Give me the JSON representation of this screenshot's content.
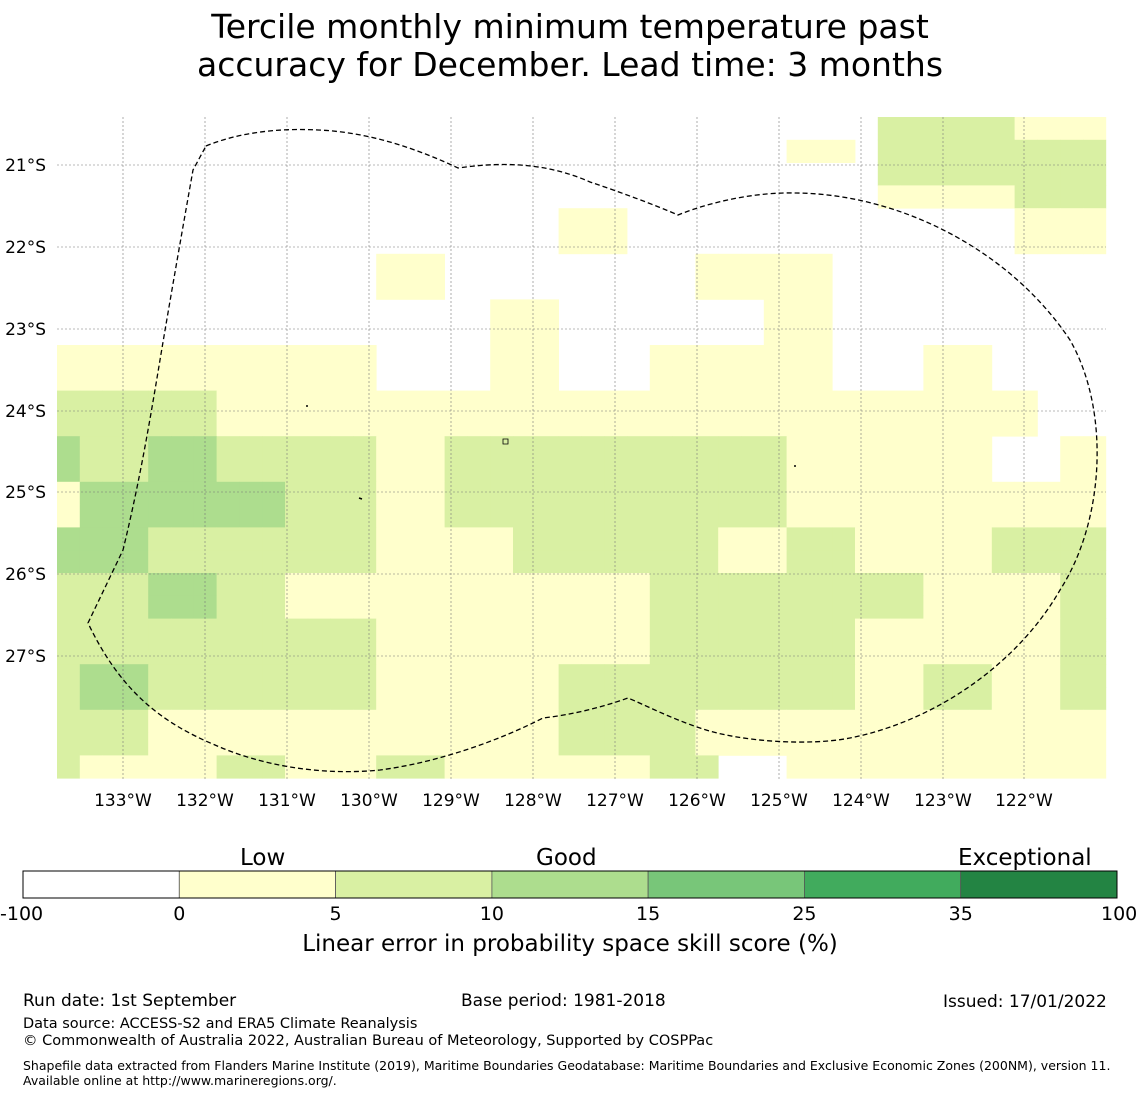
{
  "title_line1": "Tercile monthly minimum temperature past",
  "title_line2": "accuracy for December. Lead time: 3 months",
  "map": {
    "lon_labels": [
      "133°W",
      "132°W",
      "131°W",
      "130°W",
      "129°W",
      "128°W",
      "127°W",
      "126°W",
      "125°W",
      "124°W",
      "123°W",
      "122°W"
    ],
    "lat_labels": [
      "21°S",
      "22°S",
      "23°S",
      "24°S",
      "25°S",
      "26°S",
      "27°S"
    ],
    "grid": [
      [
        0,
        0,
        0,
        0,
        0,
        0,
        0,
        0,
        0,
        0,
        0,
        0,
        0,
        0,
        0,
        0,
        0,
        0,
        0,
        0,
        0,
        0,
        0,
        0,
        0,
        0,
        0,
        0,
        0,
        0,
        0,
        0,
        0,
        0,
        0,
        0,
        2,
        2,
        2,
        2,
        2,
        2,
        1,
        1,
        1,
        1
      ],
      [
        0,
        0,
        0,
        0,
        0,
        0,
        0,
        0,
        0,
        0,
        0,
        0,
        0,
        0,
        0,
        0,
        0,
        0,
        0,
        0,
        0,
        0,
        0,
        0,
        0,
        0,
        0,
        0,
        0,
        0,
        0,
        0,
        1,
        1,
        1,
        0,
        2,
        2,
        2,
        2,
        2,
        2,
        2,
        2,
        2,
        2
      ],
      [
        0,
        0,
        0,
        0,
        0,
        0,
        0,
        0,
        0,
        0,
        0,
        0,
        0,
        0,
        0,
        0,
        0,
        0,
        0,
        0,
        0,
        0,
        0,
        0,
        0,
        0,
        0,
        0,
        0,
        0,
        0,
        0,
        0,
        0,
        0,
        0,
        2,
        2,
        2,
        2,
        2,
        2,
        2,
        2,
        2,
        2
      ],
      [
        0,
        0,
        0,
        0,
        0,
        0,
        0,
        0,
        0,
        0,
        0,
        0,
        0,
        0,
        0,
        0,
        0,
        0,
        0,
        0,
        0,
        0,
        0,
        0,
        0,
        0,
        0,
        0,
        0,
        0,
        0,
        0,
        0,
        0,
        0,
        0,
        1,
        1,
        1,
        1,
        1,
        1,
        2,
        2,
        2,
        2
      ],
      [
        0,
        0,
        0,
        0,
        0,
        0,
        0,
        0,
        0,
        0,
        0,
        0,
        0,
        0,
        0,
        0,
        0,
        0,
        0,
        0,
        0,
        0,
        1,
        1,
        1,
        0,
        0,
        0,
        0,
        0,
        0,
        0,
        0,
        0,
        0,
        0,
        0,
        0,
        0,
        0,
        0,
        0,
        1,
        1,
        1,
        1
      ],
      [
        0,
        0,
        0,
        0,
        0,
        0,
        0,
        0,
        0,
        0,
        0,
        0,
        0,
        0,
        0,
        0,
        0,
        0,
        0,
        0,
        0,
        0,
        1,
        1,
        1,
        0,
        0,
        0,
        0,
        0,
        0,
        0,
        0,
        0,
        0,
        0,
        0,
        0,
        0,
        0,
        0,
        0,
        1,
        1,
        1,
        1
      ],
      [
        0,
        0,
        0,
        0,
        0,
        0,
        0,
        0,
        0,
        0,
        0,
        0,
        0,
        0,
        1,
        1,
        1,
        0,
        0,
        0,
        0,
        0,
        0,
        0,
        0,
        0,
        0,
        0,
        1,
        1,
        1,
        1,
        1,
        1,
        0,
        0,
        0,
        0,
        0,
        0,
        0,
        0,
        0,
        0,
        0,
        0
      ],
      [
        0,
        0,
        0,
        0,
        0,
        0,
        0,
        0,
        0,
        0,
        0,
        0,
        0,
        0,
        1,
        1,
        1,
        0,
        0,
        0,
        0,
        0,
        0,
        0,
        0,
        0,
        0,
        0,
        1,
        1,
        1,
        1,
        1,
        1,
        0,
        0,
        0,
        0,
        0,
        0,
        0,
        0,
        0,
        0,
        0,
        0
      ],
      [
        0,
        0,
        0,
        0,
        0,
        0,
        0,
        0,
        0,
        0,
        0,
        0,
        0,
        0,
        0,
        0,
        0,
        0,
        0,
        1,
        1,
        1,
        0,
        0,
        0,
        0,
        0,
        0,
        0,
        0,
        0,
        1,
        1,
        1,
        0,
        0,
        0,
        0,
        0,
        0,
        0,
        0,
        0,
        0,
        0,
        0
      ],
      [
        0,
        0,
        0,
        0,
        0,
        0,
        0,
        0,
        0,
        0,
        0,
        0,
        0,
        0,
        0,
        0,
        0,
        0,
        0,
        1,
        1,
        1,
        0,
        0,
        0,
        0,
        0,
        0,
        0,
        0,
        0,
        1,
        1,
        1,
        0,
        0,
        0,
        0,
        0,
        0,
        0,
        0,
        0,
        0,
        0,
        0
      ],
      [
        1,
        1,
        1,
        1,
        1,
        1,
        1,
        1,
        1,
        1,
        1,
        1,
        1,
        1,
        0,
        0,
        0,
        0,
        0,
        1,
        1,
        1,
        0,
        0,
        0,
        0,
        1,
        1,
        1,
        1,
        1,
        1,
        1,
        1,
        0,
        0,
        0,
        0,
        1,
        1,
        1,
        0,
        0,
        0,
        0,
        0
      ],
      [
        1,
        1,
        1,
        1,
        1,
        1,
        1,
        1,
        1,
        1,
        1,
        1,
        1,
        1,
        0,
        0,
        0,
        0,
        0,
        1,
        1,
        1,
        0,
        0,
        0,
        0,
        1,
        1,
        1,
        1,
        1,
        1,
        1,
        1,
        0,
        0,
        0,
        0,
        1,
        1,
        1,
        0,
        0,
        0,
        0,
        0
      ],
      [
        2,
        2,
        2,
        2,
        2,
        2,
        2,
        1,
        1,
        1,
        1,
        1,
        1,
        1,
        1,
        1,
        1,
        1,
        1,
        1,
        1,
        1,
        1,
        1,
        1,
        1,
        1,
        1,
        1,
        1,
        1,
        1,
        1,
        1,
        1,
        1,
        1,
        1,
        1,
        1,
        1,
        1,
        1,
        0,
        0,
        0
      ],
      [
        2,
        2,
        2,
        2,
        2,
        2,
        2,
        1,
        1,
        1,
        1,
        1,
        1,
        1,
        1,
        1,
        1,
        1,
        1,
        1,
        1,
        1,
        1,
        1,
        1,
        1,
        1,
        1,
        1,
        1,
        1,
        1,
        1,
        1,
        1,
        1,
        1,
        1,
        1,
        1,
        1,
        1,
        1,
        0,
        0,
        0
      ],
      [
        3,
        2,
        2,
        2,
        3,
        3,
        3,
        2,
        2,
        2,
        2,
        2,
        2,
        2,
        1,
        1,
        1,
        2,
        2,
        2,
        2,
        2,
        2,
        2,
        2,
        2,
        2,
        2,
        2,
        2,
        2,
        2,
        1,
        1,
        1,
        1,
        1,
        1,
        1,
        1,
        1,
        0,
        0,
        0,
        1,
        1
      ],
      [
        3,
        2,
        2,
        2,
        3,
        3,
        3,
        2,
        2,
        2,
        2,
        2,
        2,
        2,
        1,
        1,
        1,
        2,
        2,
        2,
        2,
        2,
        2,
        2,
        2,
        2,
        2,
        2,
        2,
        2,
        2,
        2,
        1,
        1,
        1,
        1,
        1,
        1,
        1,
        1,
        1,
        0,
        0,
        0,
        1,
        1
      ],
      [
        1,
        3,
        3,
        3,
        3,
        3,
        3,
        3,
        3,
        3,
        2,
        2,
        2,
        2,
        1,
        1,
        1,
        2,
        2,
        2,
        2,
        2,
        2,
        2,
        2,
        2,
        2,
        2,
        2,
        2,
        2,
        2,
        1,
        1,
        1,
        1,
        1,
        1,
        1,
        1,
        1,
        1,
        1,
        1,
        1,
        1
      ],
      [
        1,
        3,
        3,
        3,
        3,
        3,
        3,
        3,
        3,
        3,
        2,
        2,
        2,
        2,
        1,
        1,
        1,
        2,
        2,
        2,
        2,
        2,
        2,
        2,
        2,
        2,
        2,
        2,
        2,
        2,
        2,
        2,
        1,
        1,
        1,
        1,
        1,
        1,
        1,
        1,
        1,
        1,
        1,
        1,
        1,
        1
      ],
      [
        3,
        3,
        3,
        3,
        2,
        2,
        2,
        2,
        2,
        2,
        2,
        2,
        2,
        2,
        1,
        1,
        1,
        1,
        1,
        1,
        2,
        2,
        2,
        2,
        2,
        2,
        2,
        2,
        2,
        1,
        1,
        1,
        2,
        2,
        2,
        1,
        1,
        1,
        1,
        1,
        1,
        2,
        2,
        2,
        2,
        2
      ],
      [
        3,
        3,
        3,
        3,
        2,
        2,
        2,
        2,
        2,
        2,
        2,
        2,
        2,
        2,
        1,
        1,
        1,
        1,
        1,
        1,
        2,
        2,
        2,
        2,
        2,
        2,
        2,
        2,
        2,
        1,
        1,
        1,
        2,
        2,
        2,
        1,
        1,
        1,
        1,
        1,
        1,
        2,
        2,
        2,
        2,
        2
      ],
      [
        2,
        2,
        2,
        2,
        3,
        3,
        3,
        2,
        2,
        2,
        1,
        1,
        1,
        1,
        1,
        1,
        1,
        1,
        1,
        1,
        1,
        1,
        1,
        1,
        1,
        1,
        2,
        2,
        2,
        2,
        2,
        2,
        2,
        2,
        2,
        2,
        2,
        2,
        1,
        1,
        1,
        1,
        1,
        1,
        2,
        2
      ],
      [
        2,
        2,
        2,
        2,
        3,
        3,
        3,
        2,
        2,
        2,
        1,
        1,
        1,
        1,
        1,
        1,
        1,
        1,
        1,
        1,
        1,
        1,
        1,
        1,
        1,
        1,
        2,
        2,
        2,
        2,
        2,
        2,
        2,
        2,
        2,
        2,
        2,
        2,
        1,
        1,
        1,
        1,
        1,
        1,
        2,
        2
      ],
      [
        2,
        2,
        2,
        2,
        2,
        2,
        2,
        2,
        2,
        2,
        2,
        2,
        2,
        2,
        1,
        1,
        1,
        1,
        1,
        1,
        1,
        1,
        1,
        1,
        1,
        1,
        2,
        2,
        2,
        2,
        2,
        2,
        2,
        2,
        2,
        1,
        1,
        1,
        1,
        1,
        1,
        1,
        1,
        1,
        2,
        2
      ],
      [
        2,
        2,
        2,
        2,
        2,
        2,
        2,
        2,
        2,
        2,
        2,
        2,
        2,
        2,
        1,
        1,
        1,
        1,
        1,
        1,
        1,
        1,
        1,
        1,
        1,
        1,
        2,
        2,
        2,
        2,
        2,
        2,
        2,
        2,
        2,
        1,
        1,
        1,
        1,
        1,
        1,
        1,
        1,
        1,
        2,
        2
      ],
      [
        2,
        3,
        3,
        3,
        2,
        2,
        2,
        2,
        2,
        2,
        2,
        2,
        2,
        2,
        1,
        1,
        1,
        1,
        1,
        1,
        1,
        1,
        2,
        2,
        2,
        2,
        2,
        2,
        2,
        2,
        2,
        2,
        2,
        2,
        2,
        1,
        1,
        1,
        2,
        2,
        2,
        1,
        1,
        1,
        2,
        2
      ],
      [
        2,
        3,
        3,
        3,
        2,
        2,
        2,
        2,
        2,
        2,
        2,
        2,
        2,
        2,
        1,
        1,
        1,
        1,
        1,
        1,
        1,
        1,
        2,
        2,
        2,
        2,
        2,
        2,
        2,
        2,
        2,
        2,
        2,
        2,
        2,
        1,
        1,
        1,
        2,
        2,
        2,
        1,
        1,
        1,
        2,
        2
      ],
      [
        2,
        2,
        2,
        2,
        1,
        1,
        1,
        1,
        1,
        1,
        1,
        1,
        1,
        1,
        1,
        1,
        1,
        1,
        1,
        1,
        1,
        1,
        2,
        2,
        2,
        2,
        2,
        2,
        1,
        1,
        1,
        1,
        1,
        1,
        1,
        1,
        1,
        1,
        1,
        1,
        1,
        1,
        1,
        1,
        1,
        1
      ],
      [
        2,
        2,
        2,
        2,
        1,
        1,
        1,
        1,
        1,
        1,
        1,
        1,
        1,
        1,
        1,
        1,
        1,
        1,
        1,
        1,
        1,
        1,
        2,
        2,
        2,
        2,
        2,
        2,
        1,
        1,
        1,
        1,
        1,
        1,
        1,
        1,
        1,
        1,
        1,
        1,
        1,
        1,
        1,
        1,
        1,
        1
      ],
      [
        2,
        1,
        1,
        1,
        1,
        1,
        1,
        2,
        2,
        2,
        1,
        1,
        1,
        1,
        2,
        2,
        2,
        1,
        1,
        1,
        1,
        1,
        1,
        1,
        1,
        1,
        2,
        2,
        2,
        0,
        0,
        0,
        1,
        1,
        1,
        1,
        1,
        1,
        1,
        1,
        1,
        1,
        1,
        1,
        1,
        1
      ]
    ]
  },
  "colorbar": {
    "colors": [
      "#ffffff",
      "#ffffcc",
      "#d9f0a3",
      "#addd8e",
      "#78c679",
      "#41ab5d",
      "#238443"
    ],
    "ticks": [
      "-100",
      "0",
      "5",
      "10",
      "15",
      "25",
      "35",
      "100"
    ],
    "category_labels": [
      "Low",
      "Good",
      "Exceptional"
    ],
    "title": "Linear error in probability space skill score (%)"
  },
  "footer": {
    "run_date": "Run date: 1st September",
    "base_period": "Base period: 1981-2018",
    "issued": "Issued: 17/01/2022",
    "data_source": "Data source: ACCESS-S2 and ERA5 Climate Reanalysis",
    "copyright": "© Commonwealth of Australia 2022, Australian Bureau of Meteorology, Supported by COSPPac",
    "shapefile": "Shapefile data extracted from Flanders Marine Institute (2019), Maritime Boundaries Geodatabase: Maritime Boundaries and Exclusive Economic Zones (200NM), version 11. Available online at http://www.marineregions.org/."
  }
}
